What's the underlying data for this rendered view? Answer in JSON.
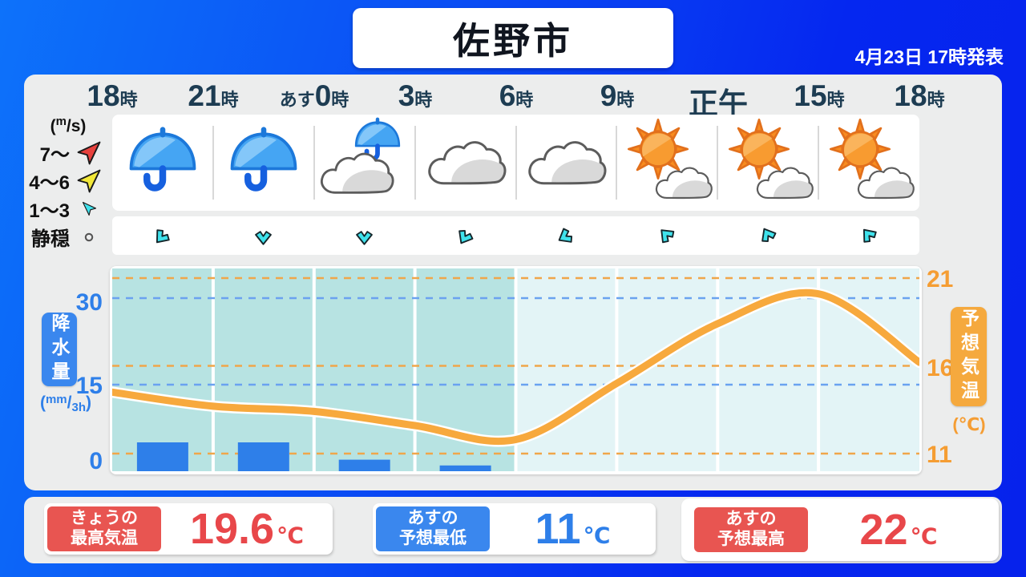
{
  "header": {
    "title": "佐野市",
    "announced": "4月23日 17時発表"
  },
  "times": [
    {
      "prefix": "",
      "num": "18",
      "suffix": "時"
    },
    {
      "prefix": "",
      "num": "21",
      "suffix": "時"
    },
    {
      "prefix": "あす",
      "num": "0",
      "suffix": "時"
    },
    {
      "prefix": "",
      "num": "3",
      "suffix": "時"
    },
    {
      "prefix": "",
      "num": "6",
      "suffix": "時"
    },
    {
      "prefix": "",
      "num": "9",
      "suffix": "時"
    },
    {
      "prefix": "",
      "num": "正午",
      "suffix": ""
    },
    {
      "prefix": "",
      "num": "15",
      "suffix": "時"
    },
    {
      "prefix": "",
      "num": "18",
      "suffix": "時"
    }
  ],
  "wind_legend": {
    "unit_open": "(",
    "unit_sup": "m",
    "unit_rest": "/s)",
    "rows": [
      {
        "label": "7〜",
        "arrow": "red"
      },
      {
        "label": "4〜6",
        "arrow": "yellow"
      },
      {
        "label": "1〜3",
        "arrow": "cyan"
      },
      {
        "label": "静穏",
        "arrow": "calm"
      }
    ]
  },
  "weather_icons": [
    "rain",
    "rain",
    "rain-cloud",
    "cloud",
    "cloud",
    "sun-cloud",
    "sun-cloud",
    "sun-cloud"
  ],
  "wind_direction_rotation_deg": [
    40,
    0,
    0,
    30,
    60,
    135,
    150,
    140
  ],
  "axis": {
    "precip_label": "降水量",
    "precip_unit": {
      "open": "(",
      "sup": "mm",
      "mid": "/",
      "sub": "3h",
      "close": ")"
    },
    "precip_ticks": [
      "30",
      "15",
      "0"
    ],
    "temp_label": "予想気温",
    "temp_unit": "(℃)",
    "temp_ticks": [
      "21",
      "16",
      "11"
    ]
  },
  "chart_data": {
    "type": "line+bar",
    "x_labels": [
      "18時",
      "21時",
      "あす0時",
      "3時",
      "6時",
      "9時",
      "正午",
      "15時",
      "18時"
    ],
    "series": [
      {
        "name": "予想気温",
        "type": "line",
        "unit": "℃",
        "axis": "right",
        "values": [
          14.5,
          13.7,
          13.4,
          12.6,
          11.8,
          15,
          18.4,
          20.1,
          16.2
        ],
        "axis_ticks": [
          11,
          16,
          21
        ],
        "color": "#f7a93d"
      },
      {
        "name": "降水量",
        "type": "bar",
        "unit": "mm/3h",
        "axis": "left",
        "values": [
          5,
          5,
          2,
          1,
          0,
          0,
          0,
          0
        ],
        "axis_ticks": [
          0,
          15,
          30
        ],
        "color": "#2e7fe9"
      }
    ],
    "rain_period_shading_columns": [
      0,
      1,
      2,
      3
    ],
    "grid": {
      "temp_dashed_lines": [
        21,
        16,
        11
      ],
      "precip_dashed_lines": [
        30,
        15
      ]
    }
  },
  "summary_cards": [
    {
      "label_line1": "きょうの",
      "label_line2": "最高気温",
      "value": "19.6",
      "unit": "℃",
      "color": "red"
    },
    {
      "label_line1": "あすの",
      "label_line2": "予想最低",
      "value": "11",
      "unit": "℃",
      "color": "blue"
    },
    {
      "label_line1": "あすの",
      "label_line2": "予想最高",
      "value": "22",
      "unit": "℃",
      "color": "red"
    }
  ],
  "colors": {
    "background_blue_start": "#0d72fa",
    "background_blue_end": "#0622ec",
    "panel_gray": "#eceded",
    "rain_bar_blue": "#2e7fe9",
    "temp_line_orange": "#f7a93d",
    "rain_shade_teal": "#b7e3e2",
    "clear_shade_cyan": "#e3f4f6",
    "label_red": "#e85551",
    "label_blue": "#3a87ee",
    "time_text": "#1d3c52",
    "tick_blue": "#2e7fe9",
    "tick_orange": "#f59d33"
  }
}
